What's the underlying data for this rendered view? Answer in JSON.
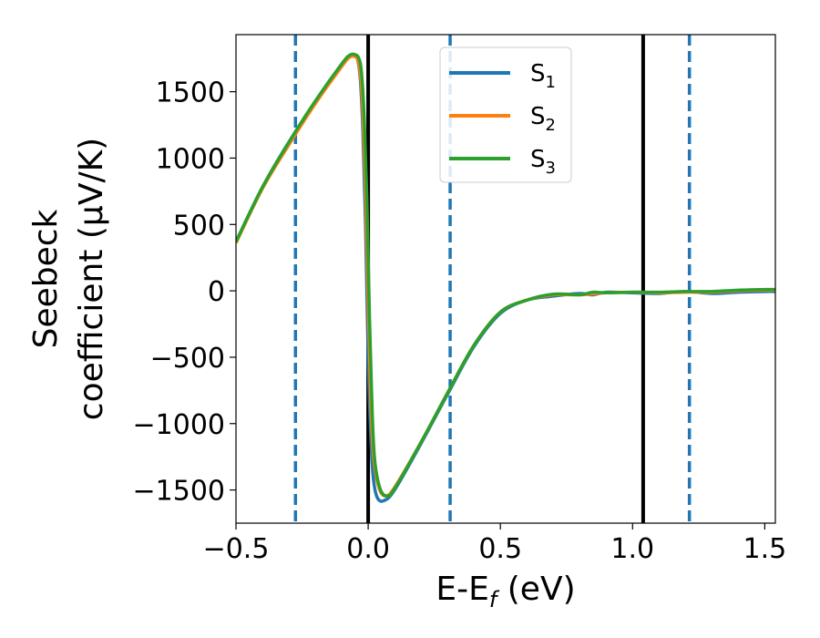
{
  "chart_data": {
    "type": "line",
    "xlabel": "E-E",
    "xlabel_sub": "f",
    "xlabel_unit": " (eV)",
    "ylabel_line1": "Seebeck",
    "ylabel_line2": "coefficient  (μV/K)",
    "xlim": [
      -0.5,
      1.54
    ],
    "ylim": [
      -1750,
      1930
    ],
    "xticks": [
      -0.5,
      0.0,
      0.5,
      1.0,
      1.5
    ],
    "xtick_labels": [
      "−0.5",
      "0.0",
      "0.5",
      "1.0",
      "1.5"
    ],
    "yticks": [
      -1500,
      -1000,
      -500,
      0,
      500,
      1000,
      1500
    ],
    "ytick_labels": [
      "−1500",
      "−1000",
      "−500",
      "0",
      "500",
      "1000",
      "1500"
    ],
    "grid": false,
    "legend": {
      "placement": "top-center"
    },
    "vlines_solid": [
      0.0,
      1.04
    ],
    "vlines_dashed": [
      -0.275,
      0.31,
      1.215
    ],
    "series": [
      {
        "name": "S",
        "sub": "1",
        "color": "#1f77b4",
        "points": [
          [
            -0.5,
            370
          ],
          [
            -0.4,
            780
          ],
          [
            -0.3,
            1120
          ],
          [
            -0.2,
            1420
          ],
          [
            -0.1,
            1700
          ],
          [
            -0.07,
            1770
          ],
          [
            -0.05,
            1775
          ],
          [
            -0.04,
            1740
          ],
          [
            -0.03,
            1600
          ],
          [
            -0.02,
            1200
          ],
          [
            -0.01,
            500
          ],
          [
            0.0,
            -500
          ],
          [
            0.01,
            -1100
          ],
          [
            0.02,
            -1420
          ],
          [
            0.035,
            -1560
          ],
          [
            0.06,
            -1580
          ],
          [
            0.1,
            -1500
          ],
          [
            0.2,
            -1150
          ],
          [
            0.3,
            -780
          ],
          [
            0.4,
            -420
          ],
          [
            0.5,
            -170
          ],
          [
            0.6,
            -70
          ],
          [
            0.7,
            -40
          ],
          [
            0.8,
            -20
          ],
          [
            0.85,
            -30
          ],
          [
            0.9,
            -10
          ],
          [
            1.0,
            -15
          ],
          [
            1.1,
            -20
          ],
          [
            1.2,
            -5
          ],
          [
            1.3,
            -20
          ],
          [
            1.4,
            -10
          ],
          [
            1.5,
            -5
          ],
          [
            1.54,
            -5
          ]
        ]
      },
      {
        "name": "S",
        "sub": "2",
        "color": "#ff7f0e",
        "points": [
          [
            -0.5,
            360
          ],
          [
            -0.4,
            770
          ],
          [
            -0.3,
            1100
          ],
          [
            -0.2,
            1410
          ],
          [
            -0.1,
            1690
          ],
          [
            -0.07,
            1760
          ],
          [
            -0.05,
            1765
          ],
          [
            -0.04,
            1740
          ],
          [
            -0.03,
            1640
          ],
          [
            -0.02,
            1340
          ],
          [
            -0.01,
            760
          ],
          [
            0.0,
            -100
          ],
          [
            0.01,
            -850
          ],
          [
            0.02,
            -1250
          ],
          [
            0.04,
            -1480
          ],
          [
            0.065,
            -1545
          ],
          [
            0.1,
            -1480
          ],
          [
            0.2,
            -1140
          ],
          [
            0.3,
            -770
          ],
          [
            0.4,
            -410
          ],
          [
            0.5,
            -160
          ],
          [
            0.6,
            -70
          ],
          [
            0.7,
            -30
          ],
          [
            0.8,
            -30
          ],
          [
            0.9,
            -15
          ],
          [
            1.0,
            -10
          ],
          [
            1.1,
            -15
          ],
          [
            1.2,
            -10
          ],
          [
            1.3,
            -10
          ],
          [
            1.4,
            0
          ],
          [
            1.5,
            5
          ],
          [
            1.54,
            5
          ]
        ]
      },
      {
        "name": "S",
        "sub": "3",
        "color": "#2ca02c",
        "points": [
          [
            -0.5,
            370
          ],
          [
            -0.4,
            780
          ],
          [
            -0.3,
            1120
          ],
          [
            -0.2,
            1430
          ],
          [
            -0.1,
            1710
          ],
          [
            -0.07,
            1775
          ],
          [
            -0.05,
            1780
          ],
          [
            -0.035,
            1750
          ],
          [
            -0.025,
            1640
          ],
          [
            -0.015,
            1300
          ],
          [
            -0.005,
            700
          ],
          [
            0.005,
            -200
          ],
          [
            0.015,
            -900
          ],
          [
            0.025,
            -1280
          ],
          [
            0.045,
            -1490
          ],
          [
            0.07,
            -1545
          ],
          [
            0.1,
            -1490
          ],
          [
            0.2,
            -1140
          ],
          [
            0.3,
            -770
          ],
          [
            0.4,
            -410
          ],
          [
            0.5,
            -160
          ],
          [
            0.6,
            -70
          ],
          [
            0.7,
            -25
          ],
          [
            0.8,
            -30
          ],
          [
            0.85,
            -10
          ],
          [
            0.9,
            -15
          ],
          [
            1.0,
            -10
          ],
          [
            1.1,
            -10
          ],
          [
            1.2,
            -5
          ],
          [
            1.3,
            -5
          ],
          [
            1.4,
            5
          ],
          [
            1.5,
            10
          ],
          [
            1.54,
            10
          ]
        ]
      }
    ]
  }
}
